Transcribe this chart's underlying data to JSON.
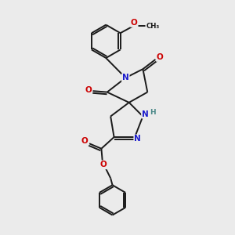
{
  "background_color": "#ebebeb",
  "bond_color": "#1a1a1a",
  "atom_colors": {
    "N": "#1a1acc",
    "O": "#cc0000",
    "H": "#4a8888",
    "C": "#1a1a1a"
  },
  "figsize": [
    3.0,
    3.0
  ],
  "dpi": 100
}
